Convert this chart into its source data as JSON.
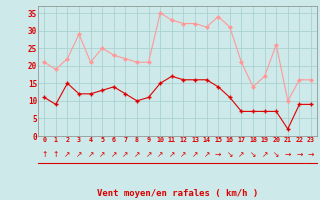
{
  "x": [
    0,
    1,
    2,
    3,
    4,
    5,
    6,
    7,
    8,
    9,
    10,
    11,
    12,
    13,
    14,
    15,
    16,
    17,
    18,
    19,
    20,
    21,
    22,
    23
  ],
  "wind_mean": [
    11,
    9,
    15,
    12,
    12,
    13,
    14,
    12,
    10,
    11,
    15,
    17,
    16,
    16,
    16,
    14,
    11,
    7,
    7,
    7,
    7,
    2,
    9,
    9
  ],
  "wind_gust": [
    21,
    19,
    22,
    29,
    21,
    25,
    23,
    22,
    21,
    21,
    35,
    33,
    32,
    32,
    31,
    34,
    31,
    21,
    14,
    17,
    26,
    10,
    16,
    16
  ],
  "bg_color": "#cde9e9",
  "grid_color": "#aad2d2",
  "mean_color": "#dd0000",
  "gust_color": "#ff9999",
  "xlabel": "Vent moyen/en rafales ( km/h )",
  "xlabel_color": "#dd0000",
  "tick_color": "#dd0000",
  "spine_color": "#888888",
  "ylim": [
    0,
    37
  ],
  "yticks": [
    0,
    5,
    10,
    15,
    20,
    25,
    30,
    35
  ],
  "arrow_symbols": [
    "↑",
    "↑",
    "↗",
    "↗",
    "↗",
    "↗",
    "↗",
    "↗",
    "↗",
    "↗",
    "↗",
    "↗",
    "↗",
    "↗",
    "↗",
    "→",
    "↘",
    "↗",
    "↘",
    "↗",
    "↘",
    "→",
    "→",
    "→"
  ]
}
